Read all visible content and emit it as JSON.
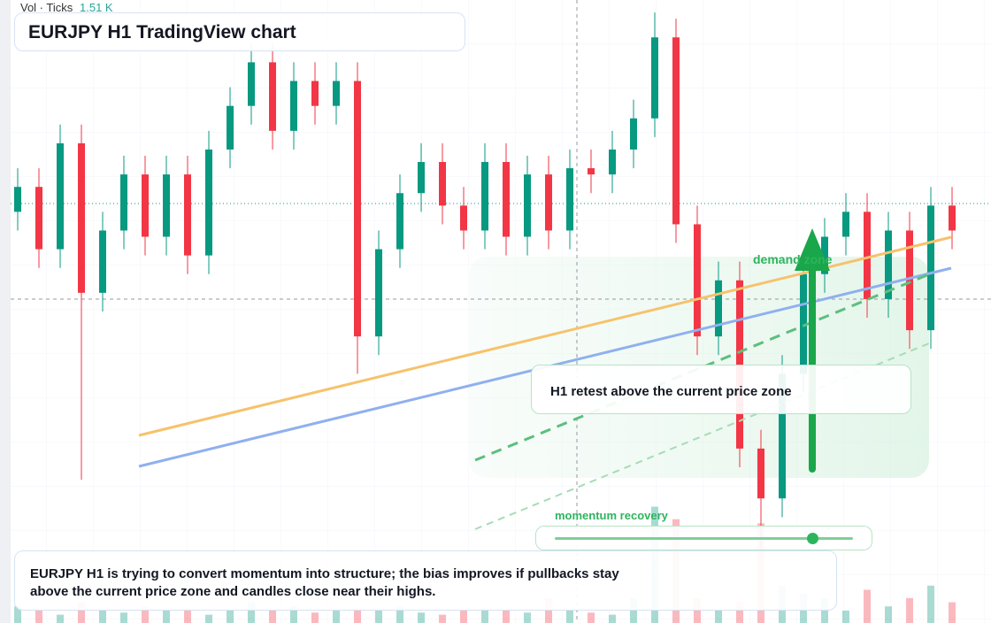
{
  "header": {
    "vol_label": "Vol · Ticks",
    "vol_value": "1.51 K",
    "title": "EURJPY H1 TradingView chart"
  },
  "chart_data": {
    "type": "candlestick",
    "ylim": [
      0,
      100
    ],
    "y2lim": [
      0,
      15000
    ],
    "up_color": "#089981",
    "down_color": "#f23645",
    "open": [
      66,
      70,
      60,
      77,
      53,
      63,
      72,
      62,
      72,
      59,
      76,
      83,
      90,
      79,
      87,
      83,
      87,
      46,
      60,
      69,
      74,
      67,
      63,
      74,
      62,
      72,
      63,
      73,
      72,
      76,
      81,
      94,
      64,
      46,
      55,
      28,
      20,
      40,
      56,
      62,
      66,
      52,
      63,
      47,
      67
    ],
    "high": [
      73,
      73,
      80,
      80,
      66,
      75,
      75,
      75,
      75,
      79,
      86,
      93,
      93,
      90,
      90,
      90,
      90,
      63,
      72,
      77,
      77,
      70,
      77,
      77,
      75,
      75,
      76,
      76,
      79,
      84,
      98,
      97,
      67,
      58,
      58,
      31,
      43,
      59,
      65,
      69,
      69,
      66,
      66,
      70,
      70
    ],
    "low": [
      63,
      57,
      57,
      23,
      50,
      60,
      59,
      59,
      56,
      56,
      73,
      80,
      76,
      76,
      80,
      80,
      40,
      43,
      57,
      66,
      64,
      60,
      60,
      59,
      59,
      60,
      60,
      69,
      69,
      73,
      78,
      61,
      43,
      43,
      25,
      12,
      17,
      37,
      53,
      59,
      49,
      49,
      44,
      44,
      60
    ],
    "close": [
      70,
      60,
      77,
      53,
      63,
      72,
      62,
      72,
      59,
      76,
      83,
      90,
      79,
      87,
      83,
      87,
      46,
      60,
      69,
      74,
      67,
      63,
      74,
      62,
      72,
      63,
      73,
      72,
      76,
      81,
      94,
      64,
      46,
      55,
      28,
      20,
      40,
      56,
      62,
      66,
      52,
      63,
      47,
      67,
      63
    ],
    "volume": [
      400,
      300,
      200,
      500,
      300,
      250,
      400,
      300,
      350,
      200,
      300,
      500,
      300,
      400,
      250,
      300,
      350,
      300,
      400,
      250,
      200,
      300,
      350,
      300,
      250,
      600,
      300,
      250,
      200,
      600,
      2800,
      2500,
      600,
      300,
      500,
      2400,
      900,
      700,
      600,
      300,
      800,
      400,
      600,
      900,
      500
    ]
  },
  "annotations": {
    "zone": "demand zone",
    "retest": "H1 retest above the current price zone",
    "slider": "momentum recovery",
    "note": "EURJPY H1 is trying to convert momentum into structure; the bias improves if pullbacks stay above the current price zone and candles close near their highs."
  }
}
